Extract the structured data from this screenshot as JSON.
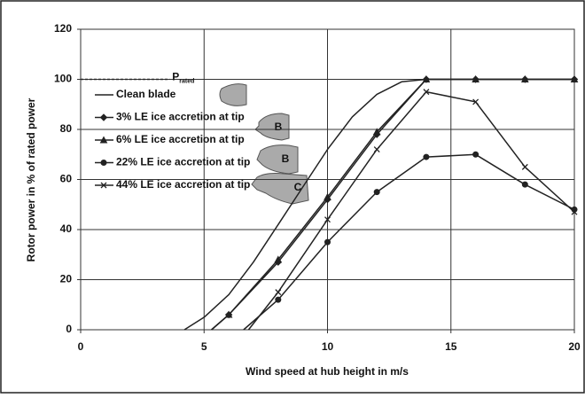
{
  "chart_data": {
    "type": "line",
    "xlabel": "Wind speed at hub height in m/s",
    "ylabel": "Rotor power in % of rated power",
    "xlim": [
      0,
      20
    ],
    "ylim": [
      0,
      120
    ],
    "xticks": [
      0,
      5,
      10,
      15,
      20
    ],
    "yticks": [
      0,
      20,
      40,
      60,
      80,
      100,
      120
    ],
    "grid": true,
    "legend": "upper left",
    "rated_line": {
      "label": "P",
      "subscript": "rated",
      "value": 100,
      "x": [
        0,
        3.6
      ]
    },
    "icon_labels": [
      "B",
      "B",
      "C"
    ],
    "series": [
      {
        "name": "Clean blade",
        "color": "#222222",
        "marker": "none",
        "x": [
          4.2,
          5,
          6,
          7,
          8,
          9,
          10,
          11,
          12,
          13,
          14,
          15,
          16,
          18,
          20
        ],
        "values": [
          0,
          5,
          14,
          27,
          42,
          57,
          72,
          85,
          94,
          99,
          100,
          100,
          100,
          100,
          100
        ]
      },
      {
        "name": "3% LE ice accretion at tip",
        "color": "#222222",
        "marker": "diamond",
        "x": [
          5.3,
          6,
          8,
          10,
          12,
          14,
          16,
          18,
          20
        ],
        "values": [
          0,
          6,
          27,
          52,
          78,
          100,
          100,
          100,
          100
        ]
      },
      {
        "name": "6% LE ice accretion at tip",
        "color": "#222222",
        "marker": "triangle",
        "x": [
          5.3,
          6,
          8,
          10,
          12,
          14,
          16,
          18,
          20
        ],
        "values": [
          0,
          6,
          28,
          53,
          79,
          100,
          100,
          100,
          100
        ]
      },
      {
        "name": "22% LE ice accretion at tip",
        "color": "#222222",
        "marker": "circle",
        "x": [
          6.6,
          8,
          10,
          12,
          14,
          16,
          18,
          20
        ],
        "values": [
          0,
          12,
          35,
          55,
          69,
          70,
          58,
          48
        ]
      },
      {
        "name": "44% LE ice accretion at tip",
        "color": "#222222",
        "marker": "x",
        "x": [
          6.8,
          8,
          10,
          12,
          14,
          16,
          18,
          20
        ],
        "values": [
          0,
          15,
          44,
          72,
          95,
          91,
          65,
          47
        ]
      }
    ]
  }
}
